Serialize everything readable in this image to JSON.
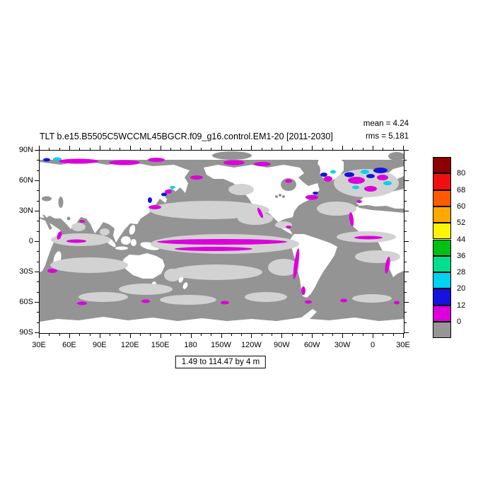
{
  "header": {
    "title": "TLT b.e15.B5505C5WCCML45BGCR.f09_g16.control.EM1-20 [2011-2030]",
    "mean_label": "mean = 4.24",
    "rms_label": "rms = 5.181"
  },
  "footer": {
    "range_label": "1.49 to 114.47 by 4 m"
  },
  "axes": {
    "y_ticks": [
      "90N",
      "60N",
      "30N",
      "0",
      "30S",
      "60S",
      "90S"
    ],
    "x_ticks": [
      "30E",
      "60E",
      "90E",
      "120E",
      "150E",
      "180",
      "150W",
      "120W",
      "90W",
      "60W",
      "30W",
      "0",
      "30E"
    ]
  },
  "colorbar": {
    "labels": [
      "80",
      "68",
      "60",
      "52",
      "44",
      "36",
      "28",
      "20",
      "12",
      "0"
    ],
    "colors_top_to_bottom": [
      "#8b0000",
      "#ee1010",
      "#ff5a00",
      "#ffa800",
      "#fff400",
      "#00c014",
      "#00df8c",
      "#00d2f0",
      "#1414dc",
      "#dc00dc",
      "#969696"
    ]
  },
  "map": {
    "palette": {
      "ocean": "#949494",
      "land": "#ffffff",
      "lightgray": "#d2d2d2",
      "magenta": "#dc00dc",
      "blue": "#1414dc",
      "cyan": "#00d2f0"
    }
  },
  "chart_data": {
    "type": "heatmap",
    "title": "TLT b.e15.B5505C5WCCML45BGCR.f09_g16.control.EM1-20 [2011-2030]",
    "stats": {
      "mean": 4.24,
      "rms": 5.181
    },
    "units": "m",
    "range_label": "1.49 to 114.47 by 4 m",
    "contour_levels": [
      0,
      12,
      20,
      28,
      36,
      44,
      52,
      60,
      68,
      80
    ],
    "level_colors_low_to_high": [
      "#969696",
      "#dc00dc",
      "#1414dc",
      "#00d2f0",
      "#00df8c",
      "#00c014",
      "#fff400",
      "#ffa800",
      "#ff5a00",
      "#ee1010",
      "#8b0000"
    ],
    "projection": "cylindrical equidistant world map, left edge at 30E",
    "x_tick_labels": [
      "30E",
      "60E",
      "90E",
      "120E",
      "150E",
      "180",
      "150W",
      "120W",
      "90W",
      "60W",
      "30W",
      "0",
      "30E"
    ],
    "y_tick_labels": [
      "90N",
      "60N",
      "30N",
      "0",
      "30S",
      "60S",
      "90S"
    ],
    "legend_position": "right vertical labelbar",
    "notes": "Ocean mostly gray (value 0) with light-gray patches; magenta (0-12 m) bands along the equatorial Pacific, Arctic coasts, Peru/NW-Africa/Benguela upwelling zones and scattered Southern Ocean spots; blue/cyan (12-28 m) patches in the North Atlantic subpolar gyre, Nordic Seas and Sea of Okhotsk; land is white (missing)."
  }
}
